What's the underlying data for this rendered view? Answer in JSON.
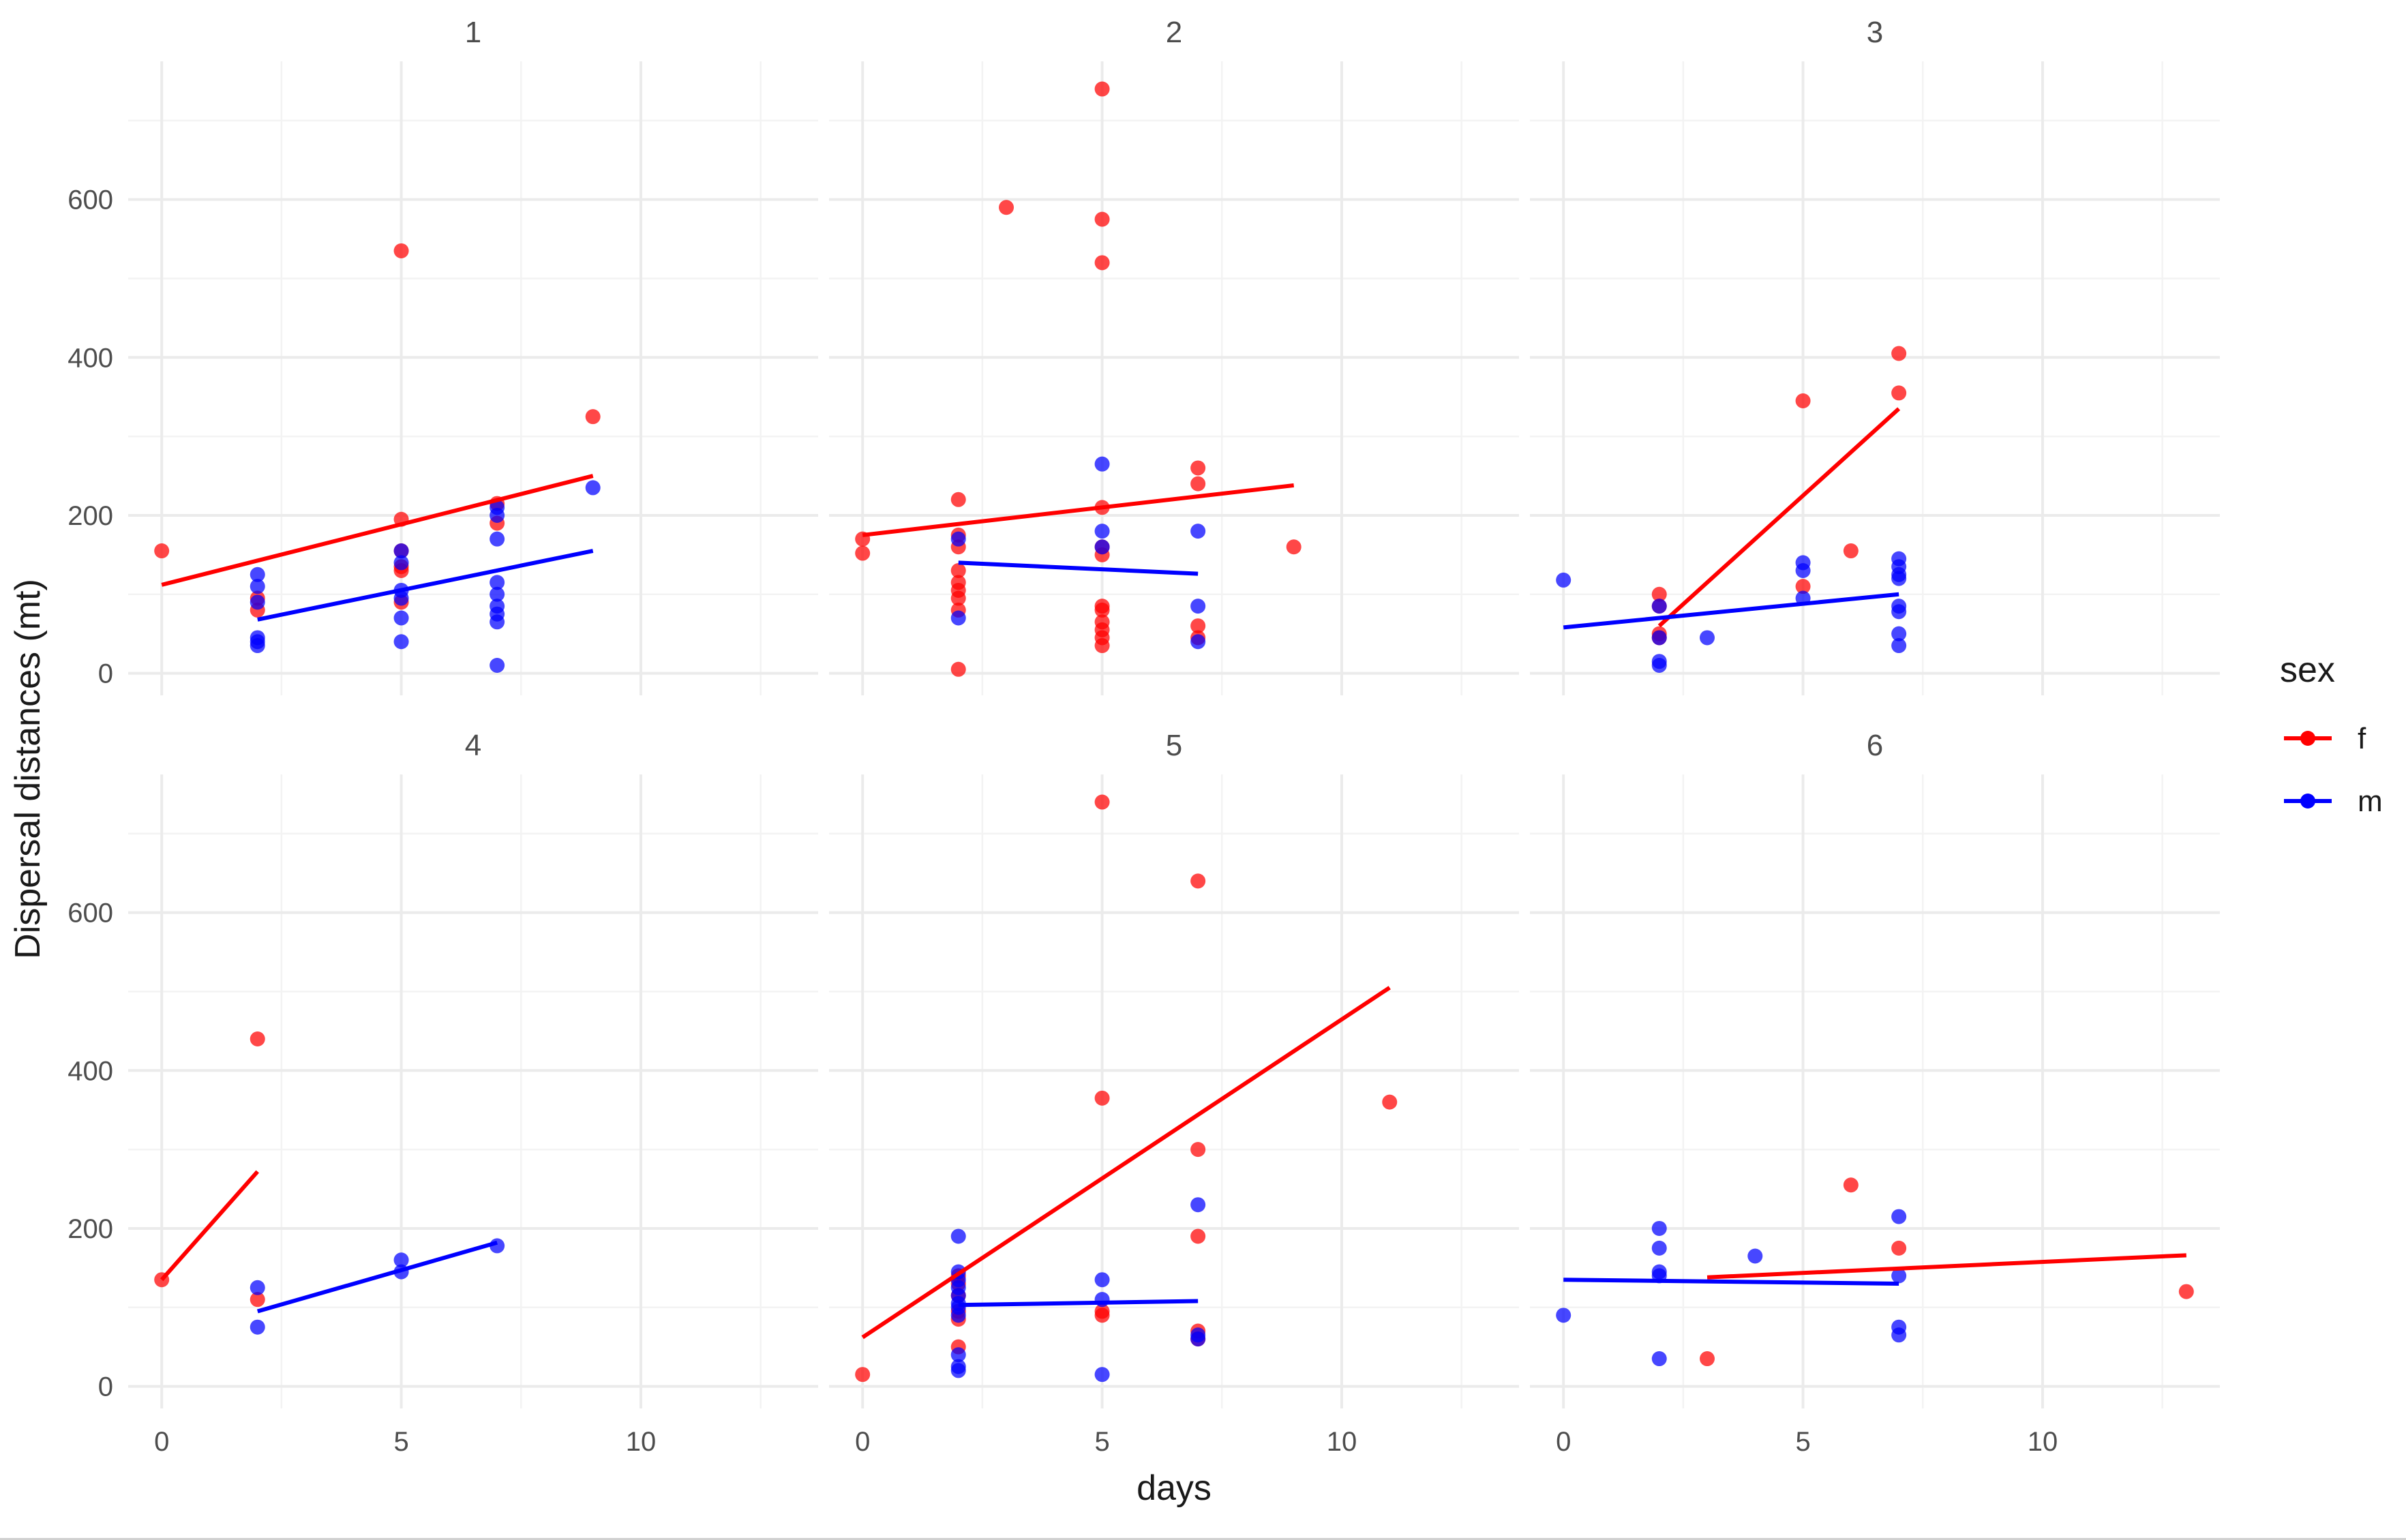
{
  "chart_data": {
    "type": "scatter",
    "xlabel": "days",
    "ylabel": "Dispersal distances (mt)",
    "xlim": [
      -0.7,
      13.7
    ],
    "ylim": [
      -28,
      775
    ],
    "x_ticks": [
      0,
      5,
      10
    ],
    "y_ticks": [
      0,
      200,
      400,
      600
    ],
    "x_minor_ticks": [
      2.5,
      7.5,
      12.5
    ],
    "y_minor_ticks": [
      100,
      300,
      500,
      700
    ],
    "grid": true,
    "legend": {
      "title": "sex",
      "position": "right",
      "entries": [
        {
          "label": "f",
          "color": "#ff0000"
        },
        {
          "label": "m",
          "color": "#0000ff"
        }
      ]
    },
    "colors": {
      "f": "#ff0000",
      "m": "#0000ff"
    },
    "panels": [
      {
        "title": "1",
        "series": [
          {
            "name": "f",
            "points": [
              [
                0,
                155
              ],
              [
                2,
                95
              ],
              [
                2,
                80
              ],
              [
                5,
                535
              ],
              [
                5,
                195
              ],
              [
                5,
                155
              ],
              [
                5,
                135
              ],
              [
                5,
                130
              ],
              [
                5,
                90
              ],
              [
                7,
                215
              ],
              [
                7,
                190
              ],
              [
                9,
                325
              ]
            ],
            "trend": [
              [
                0,
                112
              ],
              [
                9,
                250
              ]
            ]
          },
          {
            "name": "m",
            "points": [
              [
                2,
                125
              ],
              [
                2,
                110
              ],
              [
                2,
                90
              ],
              [
                2,
                45
              ],
              [
                2,
                40
              ],
              [
                2,
                35
              ],
              [
                5,
                155
              ],
              [
                5,
                140
              ],
              [
                5,
                105
              ],
              [
                5,
                95
              ],
              [
                5,
                70
              ],
              [
                5,
                40
              ],
              [
                7,
                210
              ],
              [
                7,
                200
              ],
              [
                7,
                170
              ],
              [
                7,
                115
              ],
              [
                7,
                100
              ],
              [
                7,
                85
              ],
              [
                7,
                75
              ],
              [
                7,
                65
              ],
              [
                7,
                10
              ],
              [
                9,
                235
              ]
            ],
            "trend": [
              [
                2,
                68
              ],
              [
                9,
                155
              ]
            ]
          }
        ]
      },
      {
        "title": "2",
        "series": [
          {
            "name": "f",
            "points": [
              [
                0,
                170
              ],
              [
                0,
                152
              ],
              [
                2,
                220
              ],
              [
                2,
                175
              ],
              [
                2,
                160
              ],
              [
                2,
                130
              ],
              [
                2,
                115
              ],
              [
                2,
                105
              ],
              [
                2,
                95
              ],
              [
                2,
                80
              ],
              [
                2,
                5
              ],
              [
                3,
                590
              ],
              [
                5,
                740
              ],
              [
                5,
                575
              ],
              [
                5,
                520
              ],
              [
                5,
                210
              ],
              [
                5,
                160
              ],
              [
                5,
                150
              ],
              [
                5,
                85
              ],
              [
                5,
                80
              ],
              [
                5,
                65
              ],
              [
                5,
                55
              ],
              [
                5,
                45
              ],
              [
                5,
                35
              ],
              [
                7,
                260
              ],
              [
                7,
                240
              ],
              [
                7,
                60
              ],
              [
                7,
                45
              ],
              [
                9,
                160
              ]
            ],
            "trend": [
              [
                0,
                175
              ],
              [
                9,
                238
              ]
            ]
          },
          {
            "name": "m",
            "points": [
              [
                2,
                170
              ],
              [
                2,
                70
              ],
              [
                5,
                265
              ],
              [
                5,
                180
              ],
              [
                5,
                160
              ],
              [
                7,
                180
              ],
              [
                7,
                85
              ],
              [
                7,
                40
              ]
            ],
            "trend": [
              [
                2,
                140
              ],
              [
                7,
                126
              ]
            ]
          }
        ]
      },
      {
        "title": "3",
        "series": [
          {
            "name": "f",
            "points": [
              [
                2,
                100
              ],
              [
                2,
                85
              ],
              [
                2,
                50
              ],
              [
                2,
                45
              ],
              [
                5,
                345
              ],
              [
                5,
                110
              ],
              [
                6,
                155
              ],
              [
                7,
                405
              ],
              [
                7,
                355
              ]
            ],
            "trend": [
              [
                2,
                60
              ],
              [
                7,
                335
              ]
            ]
          },
          {
            "name": "m",
            "points": [
              [
                0,
                118
              ],
              [
                2,
                85
              ],
              [
                2,
                45
              ],
              [
                2,
                15
              ],
              [
                2,
                10
              ],
              [
                3,
                45
              ],
              [
                5,
                140
              ],
              [
                5,
                130
              ],
              [
                5,
                95
              ],
              [
                7,
                145
              ],
              [
                7,
                135
              ],
              [
                7,
                125
              ],
              [
                7,
                120
              ],
              [
                7,
                85
              ],
              [
                7,
                78
              ],
              [
                7,
                50
              ],
              [
                7,
                35
              ]
            ],
            "trend": [
              [
                0,
                58
              ],
              [
                7,
                100
              ]
            ]
          }
        ]
      },
      {
        "title": "4",
        "series": [
          {
            "name": "f",
            "points": [
              [
                0,
                135
              ],
              [
                2,
                440
              ],
              [
                2,
                110
              ]
            ],
            "trend": [
              [
                0,
                135
              ],
              [
                2,
                272
              ]
            ]
          },
          {
            "name": "m",
            "points": [
              [
                2,
                125
              ],
              [
                2,
                75
              ],
              [
                5,
                160
              ],
              [
                5,
                145
              ],
              [
                7,
                178
              ]
            ],
            "trend": [
              [
                2,
                95
              ],
              [
                7,
                182
              ]
            ]
          }
        ]
      },
      {
        "title": "5",
        "series": [
          {
            "name": "f",
            "points": [
              [
                0,
                15
              ],
              [
                2,
                140
              ],
              [
                2,
                130
              ],
              [
                2,
                115
              ],
              [
                2,
                95
              ],
              [
                2,
                85
              ],
              [
                2,
                50
              ],
              [
                5,
                740
              ],
              [
                5,
                365
              ],
              [
                5,
                95
              ],
              [
                5,
                90
              ],
              [
                7,
                640
              ],
              [
                7,
                300
              ],
              [
                7,
                190
              ],
              [
                7,
                70
              ],
              [
                7,
                60
              ],
              [
                11,
                360
              ]
            ],
            "trend": [
              [
                0,
                62
              ],
              [
                11,
                505
              ]
            ]
          },
          {
            "name": "m",
            "points": [
              [
                2,
                190
              ],
              [
                2,
                145
              ],
              [
                2,
                135
              ],
              [
                2,
                125
              ],
              [
                2,
                115
              ],
              [
                2,
                105
              ],
              [
                2,
                100
              ],
              [
                2,
                90
              ],
              [
                2,
                40
              ],
              [
                2,
                25
              ],
              [
                2,
                20
              ],
              [
                5,
                135
              ],
              [
                5,
                110
              ],
              [
                5,
                15
              ],
              [
                7,
                230
              ],
              [
                7,
                65
              ],
              [
                7,
                60
              ]
            ],
            "trend": [
              [
                2,
                103
              ],
              [
                7,
                108
              ]
            ]
          }
        ]
      },
      {
        "title": "6",
        "series": [
          {
            "name": "f",
            "points": [
              [
                3,
                35
              ],
              [
                6,
                255
              ],
              [
                7,
                175
              ],
              [
                13,
                120
              ]
            ],
            "trend": [
              [
                3,
                138
              ],
              [
                13,
                166
              ]
            ]
          },
          {
            "name": "m",
            "points": [
              [
                0,
                90
              ],
              [
                2,
                200
              ],
              [
                2,
                175
              ],
              [
                2,
                145
              ],
              [
                2,
                140
              ],
              [
                2,
                35
              ],
              [
                4,
                165
              ],
              [
                7,
                215
              ],
              [
                7,
                140
              ],
              [
                7,
                75
              ],
              [
                7,
                65
              ]
            ],
            "trend": [
              [
                0,
                135
              ],
              [
                7,
                130
              ]
            ]
          }
        ]
      }
    ]
  }
}
